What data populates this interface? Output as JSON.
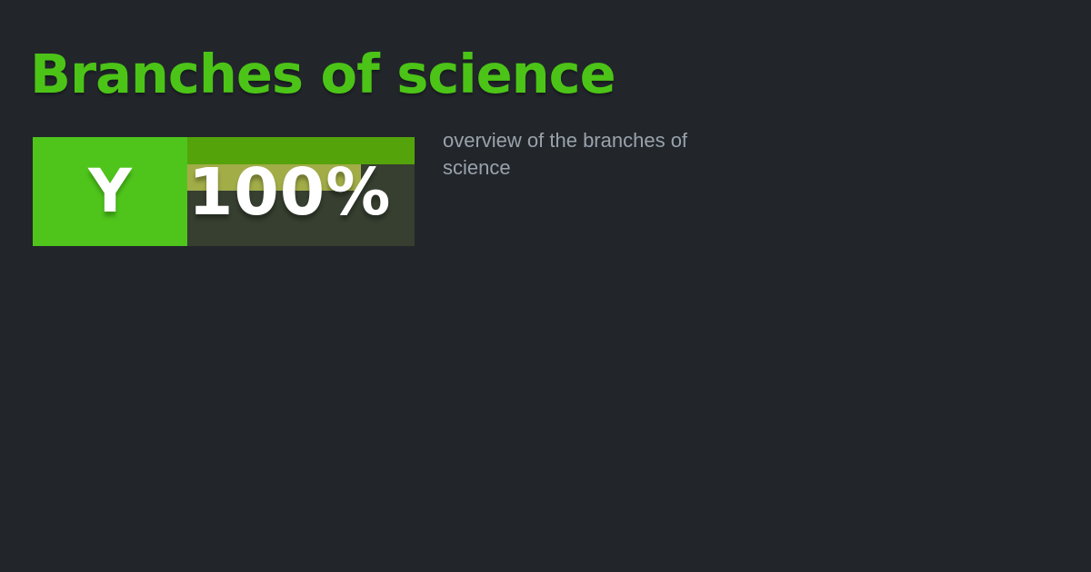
{
  "page": {
    "background_color": "#22262b"
  },
  "title": {
    "text": "Branches of science",
    "color": "#4cc417"
  },
  "subtitle": {
    "text": "overview of the branches of science",
    "color": "#99a2ab"
  },
  "badge": {
    "option_letter": "Y",
    "percent_label": "100%",
    "percent_value": 100,
    "square_color": "#4fc51c",
    "panel_color": "#363f30",
    "bars": [
      {
        "color": "#55a30a",
        "width_pct": 100
      },
      {
        "color": "#a2ad48",
        "width_pct": 76.5
      }
    ]
  }
}
